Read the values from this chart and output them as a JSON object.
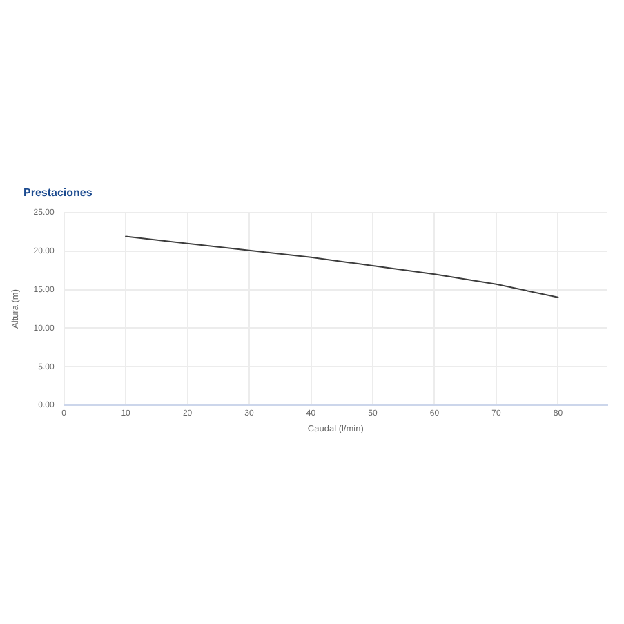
{
  "chart_data": {
    "type": "line",
    "title": "Prestaciones",
    "xlabel": "Caudal (l/min)",
    "ylabel": "Altura (m)",
    "x": [
      10,
      20,
      30,
      40,
      50,
      60,
      70,
      80
    ],
    "series": [
      {
        "color": "#3c3c3c",
        "values": [
          21.9,
          21.0,
          20.1,
          19.2,
          18.1,
          17.0,
          15.7,
          14.0
        ]
      }
    ],
    "xlim": [
      0,
      88
    ],
    "xticks": [
      0,
      10,
      20,
      30,
      40,
      50,
      60,
      70,
      80
    ],
    "ylim": [
      0,
      25
    ],
    "yticks": [
      {
        "value": 0,
        "label": "0.00"
      },
      {
        "value": 5,
        "label": "5.00"
      },
      {
        "value": 10,
        "label": "10.00"
      },
      {
        "value": 15,
        "label": "15.00"
      },
      {
        "value": 20,
        "label": "20.00"
      },
      {
        "value": 25,
        "label": "25.00"
      }
    ],
    "grid": true,
    "marker": "none",
    "line_style": "solid"
  }
}
